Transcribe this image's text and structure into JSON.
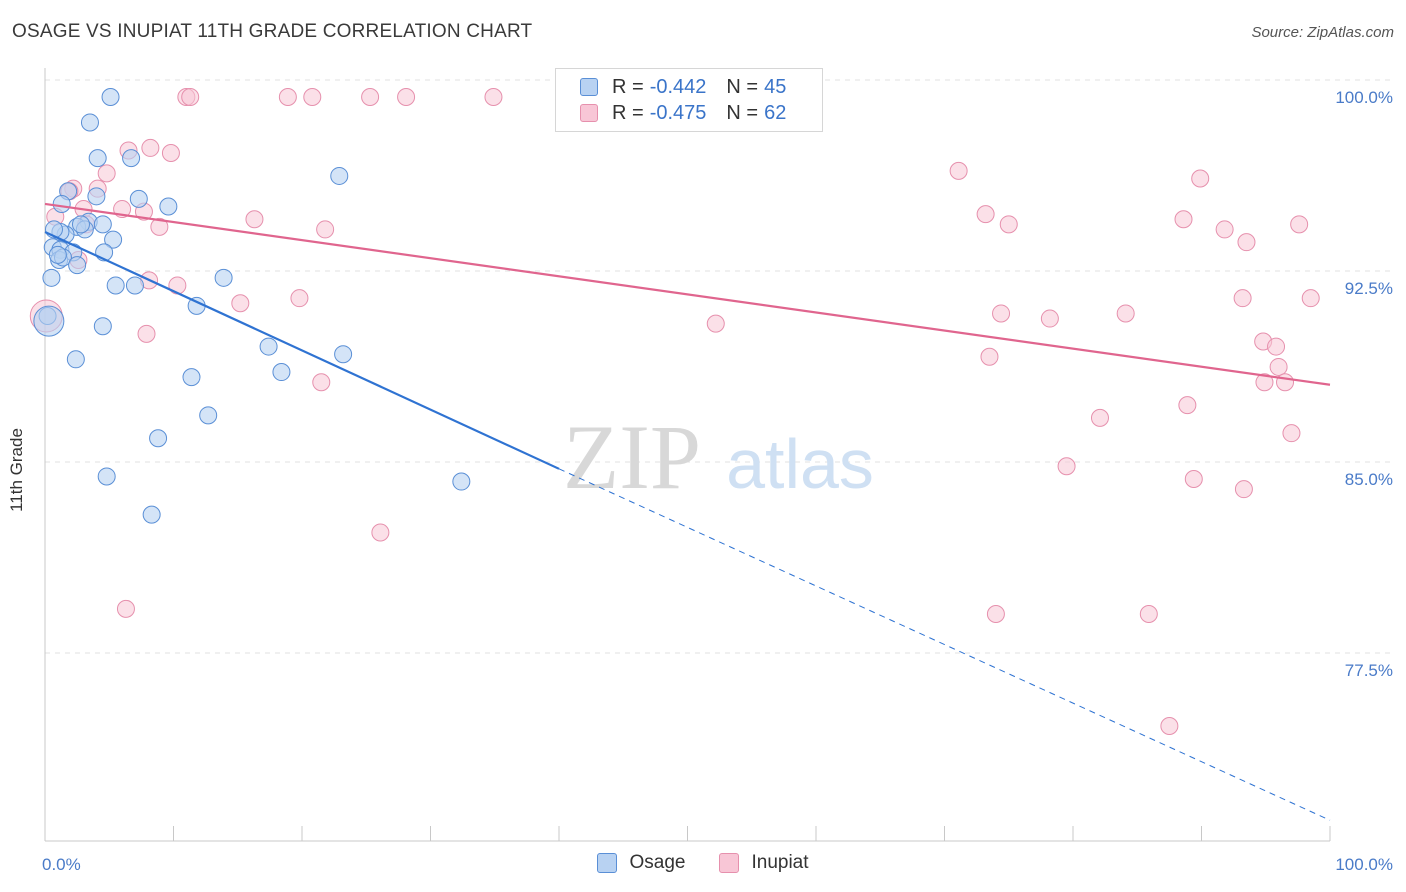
{
  "title": "OSAGE VS INUPIAT 11TH GRADE CORRELATION CHART",
  "source": "Source: ZipAtlas.com",
  "watermark": {
    "zip": "ZIP",
    "atlas": "atlas"
  },
  "colors": {
    "osage_fill": "#b8d2f2",
    "osage_stroke": "#5a8fd6",
    "osage_line": "#2f73d2",
    "inupiat_fill": "#f8c6d6",
    "inupiat_stroke": "#e690ad",
    "inupiat_line": "#e0658e",
    "tick_text": "#4a7bc8",
    "grid": "#e2e2e2"
  },
  "legend": {
    "osage": {
      "r_label": "R = ",
      "r_value": "-0.442",
      "n_label": "N = ",
      "n_value": "45"
    },
    "inupiat": {
      "r_label": "R = ",
      "r_value": "-0.475",
      "n_label": "N = ",
      "n_value": "62"
    }
  },
  "chart_data": {
    "type": "scatter",
    "title": "OSAGE VS INUPIAT 11TH GRADE CORRELATION CHART",
    "xlabel": "",
    "ylabel": "11th Grade",
    "xlim": [
      0,
      100
    ],
    "ylim": [
      70.5,
      101
    ],
    "x_tick_labels": [
      "0.0%",
      "100.0%"
    ],
    "y_ticks": [
      100,
      92.5,
      85,
      77.5
    ],
    "y_tick_labels": [
      "100.0%",
      "92.5%",
      "85.0%",
      "77.5%"
    ],
    "grid": true,
    "legend_placement": "top-center",
    "series": [
      {
        "name": "Osage",
        "points": [
          [
            5.1,
            100.0
          ],
          [
            3.5,
            99.0
          ],
          [
            4.1,
            97.6
          ],
          [
            6.7,
            97.6
          ],
          [
            22.9,
            96.9
          ],
          [
            1.8,
            96.3
          ],
          [
            7.3,
            96.0
          ],
          [
            4.0,
            96.1
          ],
          [
            1.3,
            95.8
          ],
          [
            9.6,
            95.7
          ],
          [
            3.4,
            95.1
          ],
          [
            4.5,
            95.0
          ],
          [
            2.5,
            94.9
          ],
          [
            3.1,
            94.8
          ],
          [
            1.6,
            94.6
          ],
          [
            1.2,
            94.7
          ],
          [
            5.3,
            94.4
          ],
          [
            0.6,
            94.1
          ],
          [
            1.2,
            94.0
          ],
          [
            4.6,
            93.9
          ],
          [
            2.2,
            93.9
          ],
          [
            1.1,
            93.6
          ],
          [
            1.4,
            93.7
          ],
          [
            2.5,
            93.4
          ],
          [
            0.5,
            92.9
          ],
          [
            13.9,
            92.9
          ],
          [
            5.5,
            92.6
          ],
          [
            7.0,
            92.6
          ],
          [
            11.8,
            91.8
          ],
          [
            0.2,
            91.4
          ],
          [
            4.5,
            91.0
          ],
          [
            17.4,
            90.2
          ],
          [
            2.4,
            89.7
          ],
          [
            23.2,
            89.9
          ],
          [
            18.4,
            89.2
          ],
          [
            11.4,
            89.0
          ],
          [
            12.7,
            87.5
          ],
          [
            8.8,
            86.6
          ],
          [
            4.8,
            85.1
          ],
          [
            32.4,
            84.9
          ],
          [
            8.3,
            83.6
          ],
          [
            0.7,
            94.8
          ],
          [
            2.8,
            95.0
          ],
          [
            1.0,
            93.8
          ],
          [
            0.3,
            91.2
          ]
        ]
      },
      {
        "name": "Inupiat",
        "points": [
          [
            11.0,
            100.0
          ],
          [
            11.3,
            100.0
          ],
          [
            18.9,
            100.0
          ],
          [
            20.8,
            100.0
          ],
          [
            25.3,
            100.0
          ],
          [
            28.1,
            100.0
          ],
          [
            34.9,
            100.0
          ],
          [
            47.2,
            100.0
          ],
          [
            6.5,
            97.9
          ],
          [
            8.2,
            98.0
          ],
          [
            9.8,
            97.8
          ],
          [
            4.8,
            97.0
          ],
          [
            2.2,
            96.4
          ],
          [
            1.9,
            96.3
          ],
          [
            4.1,
            96.4
          ],
          [
            3.0,
            95.6
          ],
          [
            6.0,
            95.6
          ],
          [
            7.7,
            95.5
          ],
          [
            0.8,
            95.3
          ],
          [
            16.3,
            95.2
          ],
          [
            3.2,
            95.0
          ],
          [
            8.9,
            94.9
          ],
          [
            21.8,
            94.8
          ],
          [
            73.2,
            95.4
          ],
          [
            75.0,
            95.0
          ],
          [
            88.6,
            95.2
          ],
          [
            91.8,
            94.8
          ],
          [
            97.6,
            95.0
          ],
          [
            93.5,
            94.3
          ],
          [
            2.6,
            93.6
          ],
          [
            8.1,
            92.8
          ],
          [
            10.3,
            92.6
          ],
          [
            71.1,
            97.1
          ],
          [
            89.9,
            96.8
          ],
          [
            15.2,
            91.9
          ],
          [
            19.8,
            92.1
          ],
          [
            74.4,
            91.5
          ],
          [
            84.1,
            91.5
          ],
          [
            93.2,
            92.1
          ],
          [
            98.5,
            92.1
          ],
          [
            78.2,
            91.3
          ],
          [
            52.2,
            91.1
          ],
          [
            94.8,
            90.4
          ],
          [
            95.8,
            90.2
          ],
          [
            7.9,
            90.7
          ],
          [
            73.5,
            89.8
          ],
          [
            96.0,
            89.4
          ],
          [
            94.9,
            88.8
          ],
          [
            96.5,
            88.8
          ],
          [
            21.5,
            88.8
          ],
          [
            88.9,
            87.9
          ],
          [
            82.1,
            87.4
          ],
          [
            97.0,
            86.8
          ],
          [
            79.5,
            85.5
          ],
          [
            89.4,
            85.0
          ],
          [
            93.3,
            84.6
          ],
          [
            26.1,
            82.9
          ],
          [
            6.3,
            79.9
          ],
          [
            74.0,
            79.7
          ],
          [
            85.9,
            79.7
          ],
          [
            87.5,
            75.3
          ],
          [
            0.1,
            91.4
          ]
        ]
      }
    ],
    "trend_lines": [
      {
        "name": "Osage",
        "x_solid": [
          0,
          40
        ],
        "y_solid": [
          94.7,
          85.4
        ],
        "x_dashed": [
          40,
          100
        ],
        "y_dashed": [
          85.4,
          71.6
        ]
      },
      {
        "name": "Inupiat",
        "x": [
          0,
          100
        ],
        "y": [
          95.8,
          88.7
        ]
      }
    ]
  },
  "bottom_legend": [
    {
      "label": "Osage"
    },
    {
      "label": "Inupiat"
    }
  ]
}
